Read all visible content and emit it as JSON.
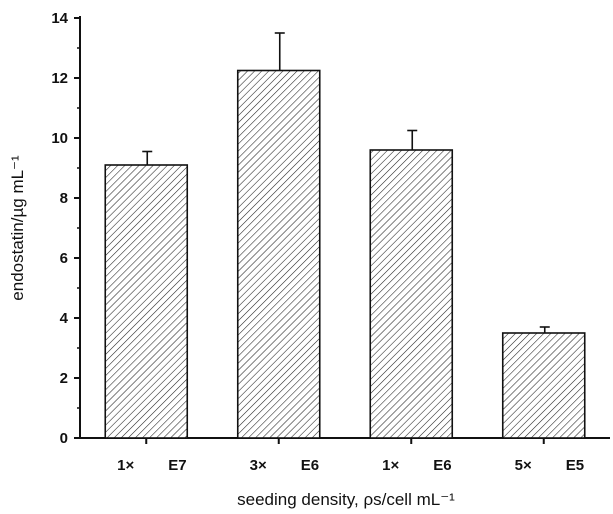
{
  "chart_data": {
    "type": "bar",
    "title": "",
    "ylabel": "endostatin/µg mL⁻¹",
    "xlabel": "seeding density, ρs/cell mL⁻¹",
    "categories": [
      "1× E7",
      "3× E6",
      "1× E6",
      "5× E5"
    ],
    "category_parts": [
      {
        "mult": "1×",
        "exp": "E7"
      },
      {
        "mult": "3×",
        "exp": "E6"
      },
      {
        "mult": "1×",
        "exp": "E6"
      },
      {
        "mult": "5×",
        "exp": "E5"
      }
    ],
    "values": [
      9.1,
      12.25,
      9.6,
      3.5
    ],
    "errors": [
      0.45,
      1.25,
      0.65,
      0.2
    ],
    "ylim": [
      0,
      14
    ],
    "yticks": [
      0,
      2,
      4,
      6,
      8,
      10,
      12,
      14
    ],
    "grid": false,
    "bar_fill": "hatched"
  },
  "colors": {
    "ink": "#111111",
    "background": "#ffffff"
  }
}
